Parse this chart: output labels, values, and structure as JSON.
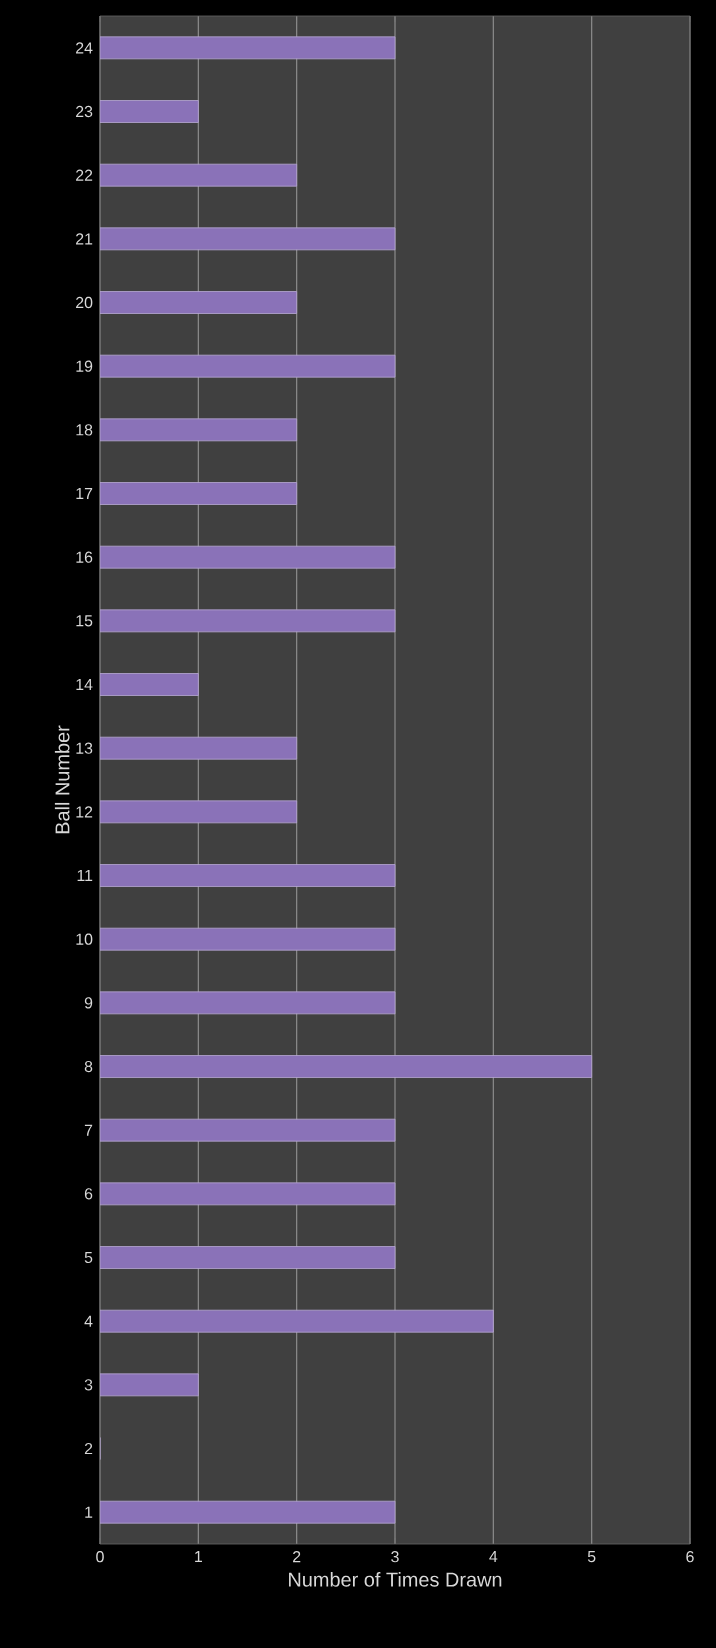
{
  "chart_data": {
    "type": "bar",
    "orientation": "horizontal",
    "xlabel": "Number  of Times Drawn",
    "ylabel": "Ball Number",
    "categories": [
      "24",
      "23",
      "22",
      "21",
      "20",
      "19",
      "18",
      "17",
      "16",
      "15",
      "14",
      "13",
      "12",
      "11",
      "10",
      "9",
      "8",
      "7",
      "6",
      "5",
      "4",
      "3",
      "2",
      "1"
    ],
    "values": [
      3,
      1,
      2,
      3,
      2,
      3,
      2,
      2,
      3,
      3,
      1,
      2,
      2,
      3,
      3,
      3,
      5,
      3,
      3,
      3,
      4,
      1,
      0,
      3
    ],
    "color": "#8a72b8",
    "xlim": [
      0,
      6
    ],
    "xticks": [
      0,
      1,
      2,
      3,
      4,
      5,
      6
    ],
    "grid": "x"
  }
}
